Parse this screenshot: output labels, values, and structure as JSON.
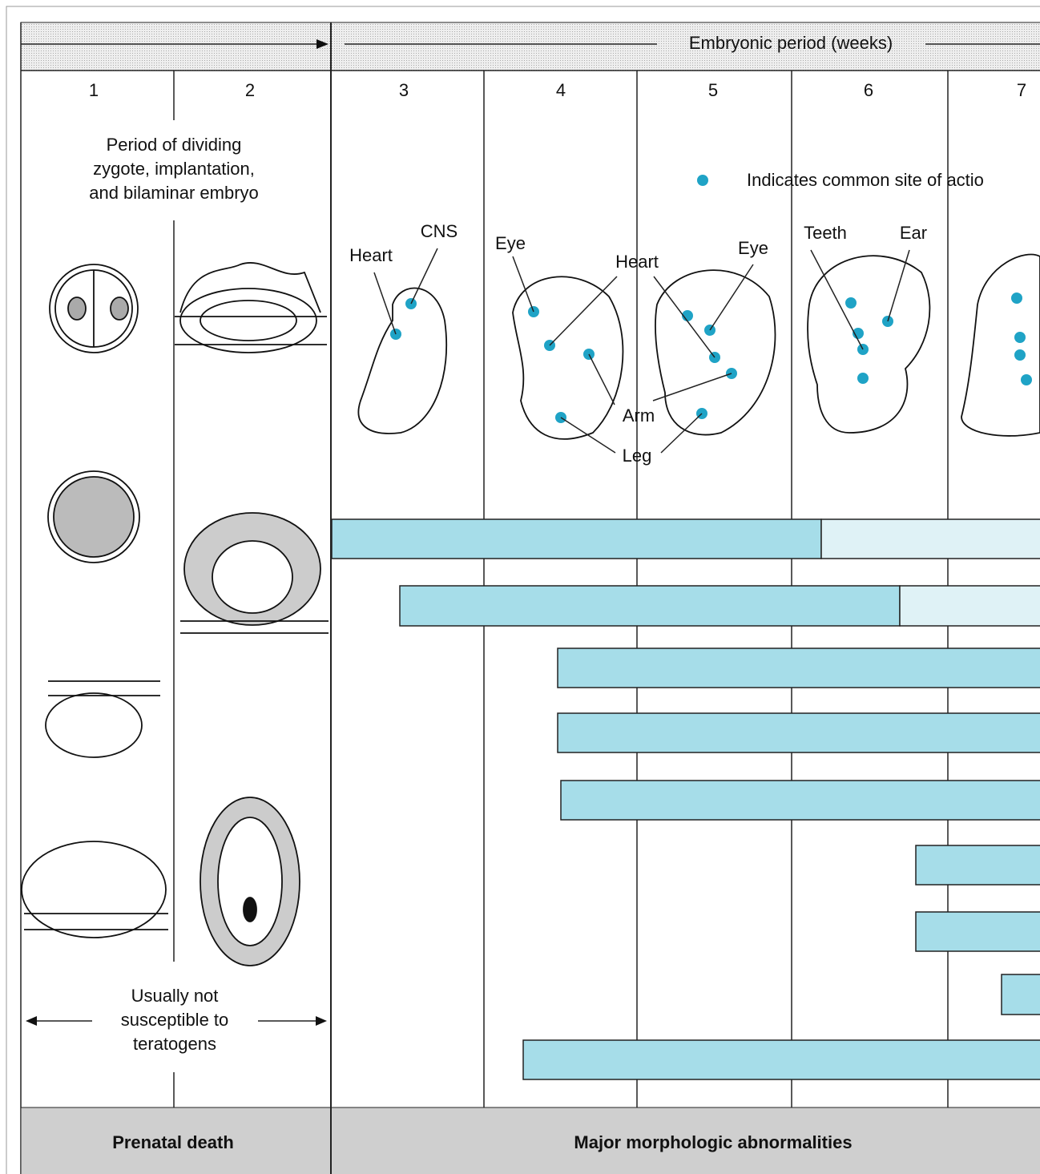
{
  "header": {
    "title": "Embryonic period (weeks)"
  },
  "weeks": [
    "1",
    "2",
    "3",
    "4",
    "5",
    "6",
    "7"
  ],
  "early_period": {
    "lines": [
      "Period of dividing",
      "zygote, implantation,",
      "and bilaminar embryo"
    ]
  },
  "legend": {
    "text": "Indicates common site of actio"
  },
  "labels": {
    "heart_3": "Heart",
    "cns": "CNS",
    "eye_4": "Eye",
    "heart_45": "Heart",
    "eye_5": "Eye",
    "teeth": "Teeth",
    "ear": "Ear",
    "arm": "Arm",
    "leg": "Leg"
  },
  "not_susceptible": {
    "lines": [
      "Usually not",
      "susceptible to",
      "teratogens"
    ]
  },
  "footer": {
    "left": "Prenatal death",
    "right": "Major morphologic abnormalities"
  }
}
